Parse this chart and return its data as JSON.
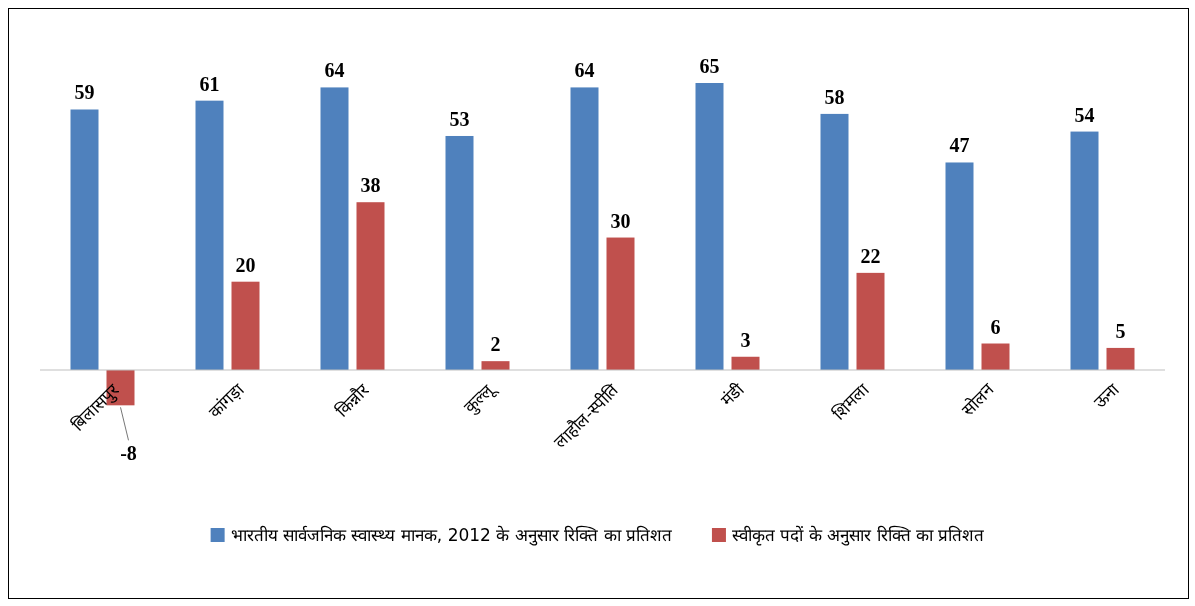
{
  "chart_data": {
    "type": "bar",
    "categories": [
      "बिलासपुर",
      "कांगड़ा",
      "किन्नौर",
      "कुल्लू",
      "लाहौल-स्पीति",
      "मंडी",
      "शिमला",
      "सोलन",
      "ऊना"
    ],
    "series": [
      {
        "name": "भारतीय सार्वजनिक स्वास्थ्य मानक, 2012 के अनुसार रिक्ति का प्रतिशत",
        "color": "#4f81bd",
        "values": [
          59,
          61,
          64,
          53,
          64,
          65,
          58,
          47,
          54
        ]
      },
      {
        "name": "स्वीकृत पदों के अनुसार रिक्ति का प्रतिशत",
        "color": "#c0504d",
        "values": [
          -8,
          20,
          38,
          2,
          30,
          3,
          22,
          6,
          5
        ]
      }
    ],
    "data_labels": true,
    "legend": "bottom"
  }
}
